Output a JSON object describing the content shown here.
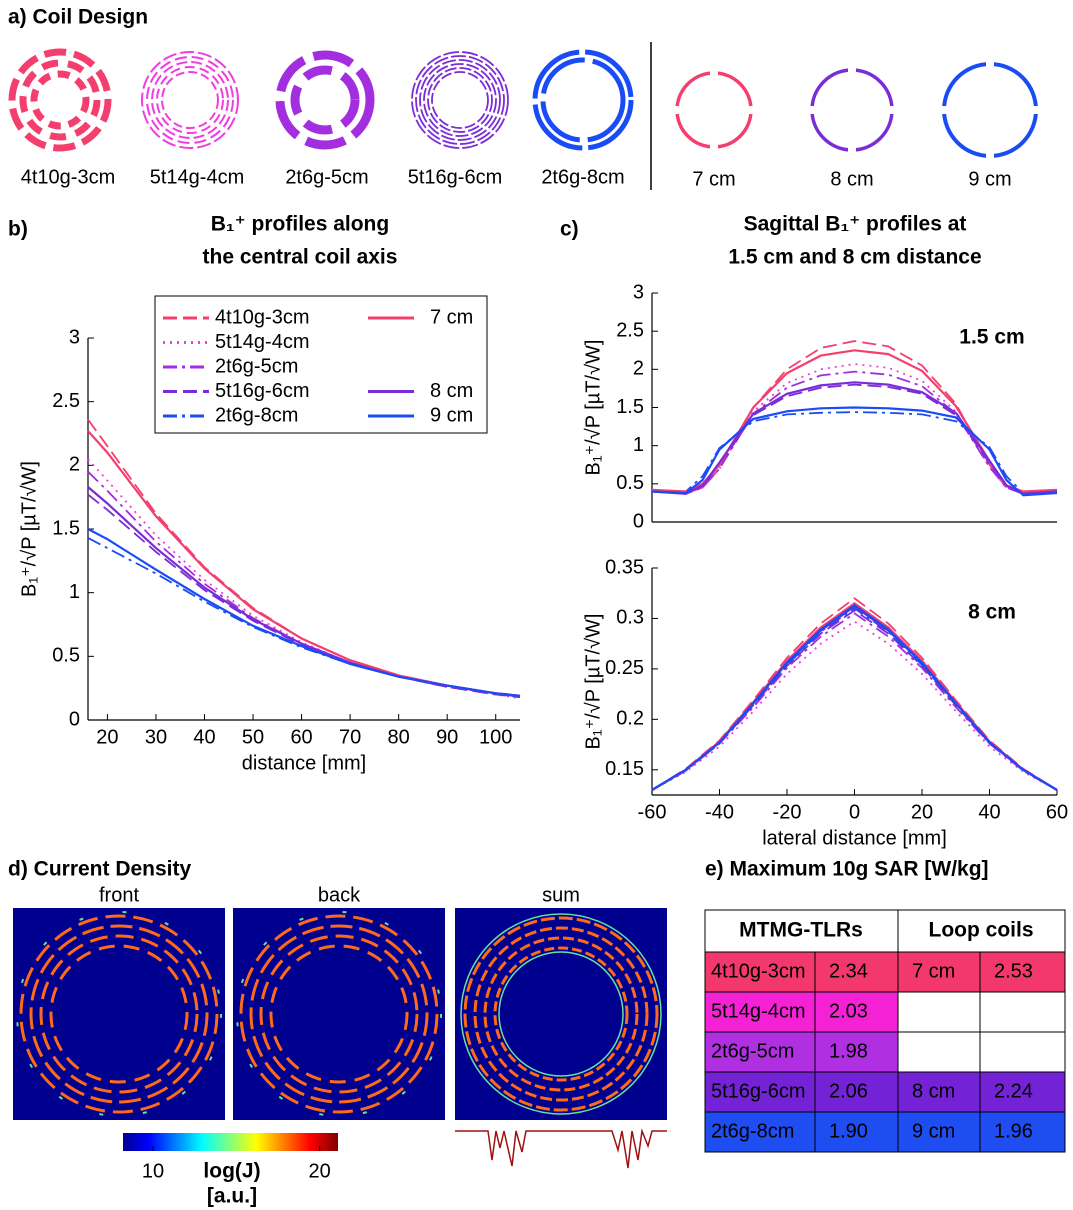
{
  "coil_design": {
    "title": "a) Coil Design",
    "coils": [
      "4t10g-3cm",
      "5t14g-4cm",
      "2t6g-5cm",
      "5t16g-6cm",
      "2t6g-8cm"
    ],
    "loops": [
      "7 cm",
      "8 cm",
      "9 cm"
    ]
  },
  "chart_data": [
    {
      "type": "line",
      "panel_label": "b)",
      "title": [
        "B₁⁺ profiles along",
        "the central coil axis"
      ],
      "x_label": "distance [mm]",
      "y_label": "B₁⁺/√P [µT/√W]",
      "legend": true,
      "x": [
        16,
        20,
        30,
        40,
        50,
        60,
        70,
        80,
        90,
        100,
        105
      ],
      "xlim": [
        16,
        105
      ],
      "xticks": [
        20,
        30,
        40,
        50,
        60,
        70,
        80,
        90,
        100
      ],
      "ylim": [
        0,
        3
      ],
      "yticks": [
        0,
        0.5,
        1,
        1.5,
        2,
        2.5,
        3
      ],
      "series": [
        {
          "name": "4t10g-3cm",
          "color": "#f43f6e",
          "style": "--",
          "values": [
            2.36,
            2.15,
            1.62,
            1.2,
            0.88,
            0.64,
            0.47,
            0.35,
            0.27,
            0.21,
            0.19
          ]
        },
        {
          "name": "5t14g-4cm",
          "color": "#f03de0",
          "style": ":",
          "values": [
            2.05,
            1.88,
            1.45,
            1.1,
            0.82,
            0.61,
            0.45,
            0.34,
            0.26,
            0.2,
            0.17
          ]
        },
        {
          "name": "2t6g-5cm",
          "color": "#a22ee0",
          "style": "-.",
          "values": [
            1.95,
            1.8,
            1.4,
            1.07,
            0.8,
            0.6,
            0.45,
            0.34,
            0.26,
            0.21,
            0.18
          ]
        },
        {
          "name": "5t16g-6cm",
          "color": "#7a2cd8",
          "style": "--",
          "values": [
            1.77,
            1.65,
            1.32,
            1.02,
            0.78,
            0.59,
            0.44,
            0.34,
            0.26,
            0.2,
            0.18
          ]
        },
        {
          "name": "2t6g-8cm",
          "color": "#1a4cf5",
          "style": "-.",
          "values": [
            1.43,
            1.35,
            1.15,
            0.93,
            0.73,
            0.57,
            0.44,
            0.34,
            0.27,
            0.21,
            0.18
          ]
        },
        {
          "name": "7 cm",
          "color": "#f43f6e",
          "style": "-",
          "values": [
            2.27,
            2.1,
            1.6,
            1.19,
            0.87,
            0.64,
            0.47,
            0.35,
            0.27,
            0.21,
            0.19
          ]
        },
        {
          "name": "8 cm",
          "color": "#7a2cd8",
          "style": "-",
          "values": [
            1.83,
            1.7,
            1.35,
            1.04,
            0.79,
            0.6,
            0.45,
            0.34,
            0.27,
            0.21,
            0.19
          ]
        },
        {
          "name": "9 cm",
          "color": "#1a4cf5",
          "style": "-",
          "values": [
            1.5,
            1.42,
            1.18,
            0.95,
            0.74,
            0.58,
            0.44,
            0.34,
            0.27,
            0.21,
            0.19
          ]
        }
      ]
    },
    {
      "type": "line",
      "panel_label": "c)",
      "title": [
        "Sagittal B₁⁺ profiles at",
        "1.5 cm and 8 cm distance"
      ],
      "y_label": "B₁⁺/√P [µT/√W]",
      "annotation": "1.5 cm",
      "x": [
        -60,
        -50,
        -45,
        -40,
        -30,
        -20,
        -10,
        0,
        10,
        20,
        30,
        40,
        45,
        50,
        60
      ],
      "xlim": [
        -60,
        60
      ],
      "ylim": [
        0,
        3
      ],
      "yticks": [
        0,
        0.5,
        1,
        1.5,
        2,
        2.5,
        3
      ],
      "series": [
        {
          "color": "#f43f6e",
          "style": "--",
          "values": [
            0.42,
            0.38,
            0.45,
            0.7,
            1.5,
            2.0,
            2.28,
            2.37,
            2.3,
            2.05,
            1.55,
            0.75,
            0.45,
            0.38,
            0.42
          ]
        },
        {
          "color": "#f03de0",
          "style": ":",
          "values": [
            0.4,
            0.38,
            0.45,
            0.7,
            1.45,
            1.82,
            2.0,
            2.07,
            2.02,
            1.85,
            1.45,
            0.72,
            0.45,
            0.37,
            0.4
          ]
        },
        {
          "color": "#a22ee0",
          "style": "-.",
          "values": [
            0.4,
            0.37,
            0.45,
            0.7,
            1.42,
            1.76,
            1.92,
            1.97,
            1.93,
            1.78,
            1.42,
            0.72,
            0.45,
            0.37,
            0.4
          ]
        },
        {
          "color": "#7a2cd8",
          "style": "--",
          "values": [
            0.4,
            0.37,
            0.47,
            0.75,
            1.4,
            1.65,
            1.76,
            1.8,
            1.77,
            1.68,
            1.4,
            0.77,
            0.47,
            0.37,
            0.4
          ]
        },
        {
          "color": "#1a4cf5",
          "style": "-.",
          "values": [
            0.4,
            0.4,
            0.6,
            0.97,
            1.32,
            1.41,
            1.43,
            1.44,
            1.43,
            1.41,
            1.32,
            0.98,
            0.6,
            0.38,
            0.4
          ]
        },
        {
          "color": "#f43f6e",
          "style": "-",
          "values": [
            0.42,
            0.4,
            0.5,
            0.75,
            1.5,
            1.95,
            2.18,
            2.25,
            2.2,
            1.98,
            1.52,
            0.8,
            0.48,
            0.4,
            0.42
          ]
        },
        {
          "color": "#7a2cd8",
          "style": "-",
          "values": [
            0.4,
            0.37,
            0.48,
            0.78,
            1.42,
            1.68,
            1.79,
            1.83,
            1.8,
            1.7,
            1.43,
            0.8,
            0.48,
            0.37,
            0.4
          ]
        },
        {
          "color": "#1a4cf5",
          "style": "-",
          "values": [
            0.4,
            0.38,
            0.55,
            0.95,
            1.35,
            1.45,
            1.49,
            1.5,
            1.49,
            1.46,
            1.37,
            0.95,
            0.55,
            0.35,
            0.38
          ]
        }
      ]
    },
    {
      "type": "line",
      "x_label": "lateral distance [mm]",
      "y_label": "B₁⁺/√P [µT/√W]",
      "annotation": "8 cm",
      "x": [
        -60,
        -50,
        -40,
        -30,
        -20,
        -10,
        0,
        10,
        20,
        30,
        40,
        50,
        60
      ],
      "xlim": [
        -60,
        60
      ],
      "xticks": [
        -60,
        -40,
        -20,
        0,
        20,
        40,
        60
      ],
      "ylim": [
        0.125,
        0.35
      ],
      "yticks": [
        0.15,
        0.2,
        0.25,
        0.3,
        0.35
      ],
      "series": [
        {
          "color": "#f43f6e",
          "style": "--",
          "values": [
            0.13,
            0.151,
            0.179,
            0.219,
            0.261,
            0.295,
            0.32,
            0.295,
            0.261,
            0.219,
            0.179,
            0.151,
            0.13
          ]
        },
        {
          "color": "#f03de0",
          "style": ":",
          "values": [
            0.13,
            0.148,
            0.173,
            0.208,
            0.245,
            0.275,
            0.297,
            0.275,
            0.245,
            0.208,
            0.173,
            0.148,
            0.13
          ]
        },
        {
          "color": "#a22ee0",
          "style": "-.",
          "values": [
            0.13,
            0.149,
            0.176,
            0.212,
            0.251,
            0.282,
            0.305,
            0.282,
            0.251,
            0.212,
            0.176,
            0.149,
            0.13
          ]
        },
        {
          "color": "#7a2cd8",
          "style": "--",
          "values": [
            0.13,
            0.15,
            0.176,
            0.214,
            0.253,
            0.285,
            0.308,
            0.285,
            0.253,
            0.214,
            0.176,
            0.15,
            0.13
          ]
        },
        {
          "color": "#1a4cf5",
          "style": "-.",
          "values": [
            0.13,
            0.15,
            0.177,
            0.215,
            0.254,
            0.287,
            0.31,
            0.287,
            0.254,
            0.215,
            0.177,
            0.15,
            0.13
          ]
        },
        {
          "color": "#f43f6e",
          "style": "-",
          "values": [
            0.13,
            0.15,
            0.178,
            0.217,
            0.258,
            0.291,
            0.315,
            0.291,
            0.258,
            0.217,
            0.178,
            0.15,
            0.13
          ]
        },
        {
          "color": "#7a2cd8",
          "style": "-",
          "values": [
            0.13,
            0.15,
            0.177,
            0.216,
            0.256,
            0.288,
            0.312,
            0.288,
            0.256,
            0.216,
            0.177,
            0.15,
            0.13
          ]
        },
        {
          "color": "#1a4cf5",
          "style": "-",
          "values": [
            0.13,
            0.15,
            0.177,
            0.216,
            0.256,
            0.289,
            0.313,
            0.289,
            0.256,
            0.216,
            0.177,
            0.15,
            0.13
          ]
        }
      ]
    }
  ],
  "current_density": {
    "title": "d) Current Density",
    "views": [
      "front",
      "back",
      "sum"
    ],
    "colorbar": {
      "label": "log(J)",
      "unit": "[a.u.]",
      "lim": [
        8.2,
        21.1
      ],
      "ticks": [
        10,
        20
      ]
    }
  },
  "table": {
    "title": "e) Maximum 10g SAR [W/kg]",
    "header": [
      "MTMG-TLRs",
      "Loop coils"
    ],
    "rows": [
      [
        "4t10g-3cm",
        "2.34",
        "7 cm",
        "2.53"
      ],
      [
        "5t14g-4cm",
        "2.03",
        null,
        null
      ],
      [
        "2t6g-5cm",
        "1.98",
        null,
        null
      ],
      [
        "5t16g-6cm",
        "2.06",
        "8 cm",
        "2.24"
      ],
      [
        "2t6g-8cm",
        "1.90",
        "9 cm",
        "1.96"
      ]
    ]
  }
}
